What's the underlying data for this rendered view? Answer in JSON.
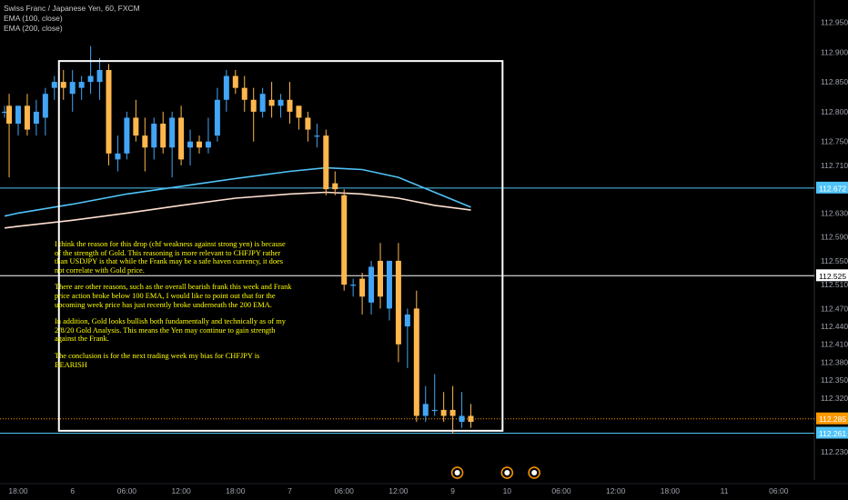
{
  "legend": {
    "symbol": "Swiss Franc / Japanese Yen, 60, FXCM",
    "ema100": "EMA (100, close)",
    "ema200": "EMA (200, close)"
  },
  "annotation": {
    "paragraphs": [
      "I think the reason for this drop (chf weakness against strong yen) is because of the strength of Gold. This reasoning is more relevant to CHFJPY rather than USDJPY is that while the Frank may be a safe haven currency, it does not correlate with Gold price.",
      "There are other reasons, such as the overall bearish frank this week and Frank price action broke below 100 EMA, I would like to point out that for the upcoming week price has just recently broke underneath the 200 EMA.",
      "In addition, Gold looks bullish both fundamentally and technically as of my 2/8/20 Gold Analysis. This means the Yen may continue to gain strength against the Frank.",
      "The conclusion is for the next trading week my bias for CHFJPY is BEARISH"
    ]
  },
  "colors": {
    "background": "#000000",
    "up": "#42a5f5",
    "down": "#ffb74d",
    "ema100": "#4fc3f7",
    "ema200": "#ffe0d0",
    "box": "#ffffff",
    "level_blue": "#4fc3f7",
    "level_white": "#ffffff",
    "current": "#ff9800",
    "axis_text": "#9ea3ae",
    "events": "#ff9800"
  },
  "chart_data": {
    "type": "candlestick",
    "symbol": "CHFJPY",
    "timeframe": "60",
    "y_ticks": [
      112.95,
      112.9,
      112.85,
      112.8,
      112.75,
      112.71,
      112.672,
      112.63,
      112.59,
      112.55,
      112.525,
      112.51,
      112.47,
      112.44,
      112.41,
      112.38,
      112.35,
      112.32,
      112.285,
      112.261,
      112.23
    ],
    "y_tick_labels": [
      "112.950",
      "112.900",
      "112.850",
      "112.800",
      "112.750",
      "112.710",
      "112.672",
      "112.630",
      "112.590",
      "112.550",
      "112.525",
      "112.510",
      "112.470",
      "112.440",
      "112.410",
      "112.380",
      "112.350",
      "112.320",
      "112.285",
      "112.261",
      "112.230"
    ],
    "y_range": [
      112.2,
      112.99
    ],
    "x_labels": [
      {
        "t": 0,
        "label": "18:00"
      },
      {
        "t": 6,
        "label": "6"
      },
      {
        "t": 12,
        "label": "06:00"
      },
      {
        "t": 18,
        "label": "12:00"
      },
      {
        "t": 24,
        "label": "18:00"
      },
      {
        "t": 30,
        "label": "7"
      },
      {
        "t": 36,
        "label": "06:00"
      },
      {
        "t": 42,
        "label": "12:00"
      },
      {
        "t": 48,
        "label": "9"
      },
      {
        "t": 54,
        "label": "10"
      },
      {
        "t": 60,
        "label": "06:00"
      },
      {
        "t": 66,
        "label": "12:00"
      },
      {
        "t": 72,
        "label": "18:00"
      },
      {
        "t": 78,
        "label": "11"
      },
      {
        "t": 84,
        "label": "06:00"
      }
    ],
    "candles": [
      {
        "t": -1.5,
        "o": 112.8,
        "h": 112.81,
        "l": 112.79,
        "c": 112.8
      },
      {
        "t": -1,
        "o": 112.81,
        "h": 112.83,
        "l": 112.69,
        "c": 112.78
      },
      {
        "t": 0,
        "o": 112.78,
        "h": 112.81,
        "l": 112.76,
        "c": 112.81
      },
      {
        "t": 1,
        "o": 112.81,
        "h": 112.83,
        "l": 112.76,
        "c": 112.77
      },
      {
        "t": 2,
        "o": 112.78,
        "h": 112.82,
        "l": 112.76,
        "c": 112.8
      },
      {
        "t": 3,
        "o": 112.79,
        "h": 112.84,
        "l": 112.76,
        "c": 112.83
      },
      {
        "t": 4,
        "o": 112.84,
        "h": 112.86,
        "l": 112.82,
        "c": 112.85
      },
      {
        "t": 5,
        "o": 112.85,
        "h": 112.87,
        "l": 112.82,
        "c": 112.84
      },
      {
        "t": 6,
        "o": 112.83,
        "h": 112.87,
        "l": 112.8,
        "c": 112.85
      },
      {
        "t": 7,
        "o": 112.84,
        "h": 112.86,
        "l": 112.82,
        "c": 112.85
      },
      {
        "t": 8,
        "o": 112.85,
        "h": 112.91,
        "l": 112.83,
        "c": 112.86
      },
      {
        "t": 9,
        "o": 112.85,
        "h": 112.89,
        "l": 112.82,
        "c": 112.87
      },
      {
        "t": 10,
        "o": 112.87,
        "h": 112.88,
        "l": 112.71,
        "c": 112.73
      },
      {
        "t": 11,
        "o": 112.72,
        "h": 112.76,
        "l": 112.7,
        "c": 112.73
      },
      {
        "t": 12,
        "o": 112.73,
        "h": 112.8,
        "l": 112.72,
        "c": 112.79
      },
      {
        "t": 13,
        "o": 112.79,
        "h": 112.82,
        "l": 112.75,
        "c": 112.76
      },
      {
        "t": 14,
        "o": 112.76,
        "h": 112.79,
        "l": 112.7,
        "c": 112.74
      },
      {
        "t": 15,
        "o": 112.74,
        "h": 112.79,
        "l": 112.72,
        "c": 112.78
      },
      {
        "t": 16,
        "o": 112.78,
        "h": 112.8,
        "l": 112.73,
        "c": 112.74
      },
      {
        "t": 17,
        "o": 112.74,
        "h": 112.8,
        "l": 112.69,
        "c": 112.79
      },
      {
        "t": 18,
        "o": 112.79,
        "h": 112.81,
        "l": 112.71,
        "c": 112.72
      },
      {
        "t": 19,
        "o": 112.74,
        "h": 112.77,
        "l": 112.71,
        "c": 112.75
      },
      {
        "t": 20,
        "o": 112.75,
        "h": 112.76,
        "l": 112.73,
        "c": 112.74
      },
      {
        "t": 21,
        "o": 112.74,
        "h": 112.79,
        "l": 112.73,
        "c": 112.75
      },
      {
        "t": 22,
        "o": 112.76,
        "h": 112.84,
        "l": 112.75,
        "c": 112.82
      },
      {
        "t": 23,
        "o": 112.82,
        "h": 112.87,
        "l": 112.8,
        "c": 112.86
      },
      {
        "t": 24,
        "o": 112.86,
        "h": 112.87,
        "l": 112.83,
        "c": 112.84
      },
      {
        "t": 25,
        "o": 112.84,
        "h": 112.86,
        "l": 112.8,
        "c": 112.82
      },
      {
        "t": 26,
        "o": 112.82,
        "h": 112.84,
        "l": 112.75,
        "c": 112.8
      },
      {
        "t": 27,
        "o": 112.8,
        "h": 112.84,
        "l": 112.79,
        "c": 112.83
      },
      {
        "t": 28,
        "o": 112.82,
        "h": 112.85,
        "l": 112.79,
        "c": 112.81
      },
      {
        "t": 29,
        "o": 112.81,
        "h": 112.83,
        "l": 112.79,
        "c": 112.82
      },
      {
        "t": 30,
        "o": 112.82,
        "h": 112.85,
        "l": 112.78,
        "c": 112.8
      },
      {
        "t": 31,
        "o": 112.81,
        "h": 112.81,
        "l": 112.77,
        "c": 112.79
      },
      {
        "t": 32,
        "o": 112.79,
        "h": 112.8,
        "l": 112.75,
        "c": 112.77
      },
      {
        "t": 33,
        "o": 112.76,
        "h": 112.78,
        "l": 112.74,
        "c": 112.76
      },
      {
        "t": 34,
        "o": 112.76,
        "h": 112.77,
        "l": 112.66,
        "c": 112.67
      },
      {
        "t": 35,
        "o": 112.68,
        "h": 112.7,
        "l": 112.66,
        "c": 112.67
      },
      {
        "t": 36,
        "o": 112.66,
        "h": 112.67,
        "l": 112.5,
        "c": 112.51
      },
      {
        "t": 37,
        "o": 112.51,
        "h": 112.52,
        "l": 112.49,
        "c": 112.51
      },
      {
        "t": 38,
        "o": 112.52,
        "h": 112.53,
        "l": 112.46,
        "c": 112.49
      },
      {
        "t": 39,
        "o": 112.48,
        "h": 112.55,
        "l": 112.46,
        "c": 112.54
      },
      {
        "t": 40,
        "o": 112.55,
        "h": 112.58,
        "l": 112.47,
        "c": 112.49
      },
      {
        "t": 41,
        "o": 112.47,
        "h": 112.55,
        "l": 112.45,
        "c": 112.55
      },
      {
        "t": 42,
        "o": 112.55,
        "h": 112.58,
        "l": 112.38,
        "c": 112.41
      },
      {
        "t": 43,
        "o": 112.44,
        "h": 112.47,
        "l": 112.37,
        "c": 112.46
      },
      {
        "t": 44,
        "o": 112.47,
        "h": 112.5,
        "l": 112.28,
        "c": 112.29
      },
      {
        "t": 45,
        "o": 112.29,
        "h": 112.34,
        "l": 112.28,
        "c": 112.31
      },
      {
        "t": 46,
        "o": 112.3,
        "h": 112.36,
        "l": 112.29,
        "c": 112.3
      },
      {
        "t": 47,
        "o": 112.3,
        "h": 112.33,
        "l": 112.28,
        "c": 112.29
      },
      {
        "t": 48,
        "o": 112.3,
        "h": 112.34,
        "l": 112.26,
        "c": 112.29
      },
      {
        "t": 49,
        "o": 112.28,
        "h": 112.33,
        "l": 112.27,
        "c": 112.29
      },
      {
        "t": 50,
        "o": 112.29,
        "h": 112.31,
        "l": 112.27,
        "c": 112.28
      }
    ],
    "ema100": [
      [
        -1.5,
        112.625
      ],
      [
        0,
        112.63
      ],
      [
        6,
        112.645
      ],
      [
        12,
        112.662
      ],
      [
        18,
        112.675
      ],
      [
        24,
        112.688
      ],
      [
        30,
        112.7
      ],
      [
        34,
        112.706
      ],
      [
        38,
        112.703
      ],
      [
        42,
        112.69
      ],
      [
        46,
        112.665
      ],
      [
        50,
        112.64
      ]
    ],
    "ema200": [
      [
        -1.5,
        112.605
      ],
      [
        0,
        112.608
      ],
      [
        6,
        112.618
      ],
      [
        12,
        112.63
      ],
      [
        18,
        112.643
      ],
      [
        24,
        112.655
      ],
      [
        30,
        112.662
      ],
      [
        34,
        112.665
      ],
      [
        38,
        112.662
      ],
      [
        42,
        112.655
      ],
      [
        46,
        112.643
      ],
      [
        50,
        112.635
      ]
    ],
    "levels": [
      {
        "value": 112.672,
        "label": "112.672",
        "role": "level_blue"
      },
      {
        "value": 112.525,
        "label": "112.525",
        "role": "level_white"
      },
      {
        "value": 112.261,
        "label": "112.261",
        "role": "level_blue"
      }
    ],
    "current_price": {
      "value": 112.285,
      "label": "112.285"
    },
    "box": {
      "t_start": 4.5,
      "t_end": 53.5,
      "y_top": 112.885,
      "y_bottom": 112.265
    },
    "event_markers": [
      48.5,
      54,
      57
    ]
  }
}
